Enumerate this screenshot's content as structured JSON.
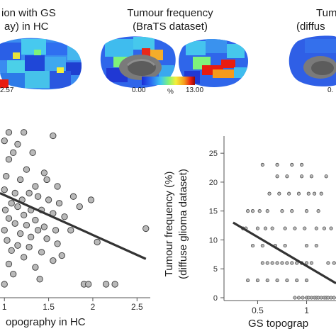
{
  "panel_left": {
    "title_line1": "ion with GS",
    "title_line2": "ay) in HC",
    "colorbar_max": "2.57",
    "xlabel": "opography in HC",
    "xticks": [
      "1",
      "1.5",
      "2",
      "2.5"
    ]
  },
  "panel_middle": {
    "title_line1": "Tumour frequency",
    "title_line2": "(BraTS dataset)",
    "colorbar_min": "0.00",
    "colorbar_unit": "%",
    "colorbar_max": "13.00"
  },
  "panel_right": {
    "title_line1": "Tum",
    "title_line2": "(diffus",
    "colorbar_min": "0."
  },
  "colors": {
    "colormap": [
      "#1a2bd6",
      "#2a6ff2",
      "#3fc7f0",
      "#7ef27a",
      "#f4ef3a",
      "#f59a1c",
      "#e81c10",
      "#8a0a08"
    ],
    "points_fill": "#b9b9b9",
    "points_stroke": "#3a3a3a",
    "fit_line": "#333333",
    "brain_blue": "#2f5fe6"
  },
  "chart_data": [
    {
      "type": "scatter",
      "title": "",
      "xlabel": "opography in HC",
      "ylabel": "",
      "xlim": [
        0.95,
        2.65
      ],
      "ylim": [
        0,
        1
      ],
      "xticks": [
        1,
        1.5,
        2,
        2.5
      ],
      "fit": {
        "x0": 0.95,
        "y0": 0.62,
        "x1": 2.6,
        "y1": 0.23
      },
      "points": [
        [
          1.05,
          0.98
        ],
        [
          1.22,
          0.98
        ],
        [
          1.55,
          0.96
        ],
        [
          1.0,
          0.93
        ],
        [
          1.1,
          0.86
        ],
        [
          1.32,
          0.86
        ],
        [
          1.05,
          0.82
        ],
        [
          1.25,
          0.76
        ],
        [
          1.45,
          0.74
        ],
        [
          1.18,
          0.7
        ],
        [
          1.02,
          0.72
        ],
        [
          1.35,
          0.66
        ],
        [
          1.38,
          0.6
        ],
        [
          1.0,
          0.64
        ],
        [
          1.12,
          0.62
        ],
        [
          1.28,
          0.62
        ],
        [
          1.2,
          0.58
        ],
        [
          1.5,
          0.58
        ],
        [
          1.08,
          0.56
        ],
        [
          1.62,
          0.56
        ],
        [
          1.98,
          0.58
        ],
        [
          1.01,
          0.52
        ],
        [
          1.15,
          0.54
        ],
        [
          1.3,
          0.52
        ],
        [
          1.42,
          0.52
        ],
        [
          1.22,
          0.49
        ],
        [
          1.55,
          0.5
        ],
        [
          1.05,
          0.47
        ],
        [
          1.35,
          0.46
        ],
        [
          1.68,
          0.48
        ],
        [
          1.12,
          0.44
        ],
        [
          1.25,
          0.43
        ],
        [
          1.45,
          0.42
        ],
        [
          1.0,
          0.4
        ],
        [
          1.38,
          0.4
        ],
        [
          1.58,
          0.4
        ],
        [
          1.18,
          0.38
        ],
        [
          1.3,
          0.36
        ],
        [
          1.03,
          0.34
        ],
        [
          1.48,
          0.35
        ],
        [
          1.15,
          0.31
        ],
        [
          1.6,
          0.32
        ],
        [
          1.08,
          0.28
        ],
        [
          1.28,
          0.3
        ],
        [
          1.42,
          0.27
        ],
        [
          1.22,
          0.24
        ],
        [
          1.55,
          0.22
        ],
        [
          1.65,
          0.25
        ],
        [
          1.05,
          0.2
        ],
        [
          1.35,
          0.18
        ],
        [
          1.75,
          0.4
        ],
        [
          2.05,
          0.33
        ],
        [
          2.6,
          0.41
        ],
        [
          1.9,
          0.08
        ],
        [
          1.95,
          0.08
        ],
        [
          2.15,
          0.08
        ],
        [
          2.25,
          0.08
        ],
        [
          1.1,
          0.14
        ],
        [
          1.4,
          0.11
        ],
        [
          1.0,
          0.08
        ],
        [
          1.6,
          0.66
        ],
        [
          1.78,
          0.6
        ],
        [
          1.85,
          0.54
        ],
        [
          1.48,
          0.7
        ],
        [
          1.15,
          0.91
        ]
      ]
    },
    {
      "type": "scatter",
      "title": "",
      "xlabel": "GS topograp",
      "ylabel": "Tumour frequency (%)\n(diffuse glioma dataset)",
      "xlim": [
        0.2,
        1.3
      ],
      "ylim": [
        0,
        26
      ],
      "xticks": [
        0.5,
        1
      ],
      "yticks": [
        0,
        5,
        10,
        15,
        20,
        25
      ],
      "fit": {
        "x0": 0.25,
        "y0": 13.0,
        "x1": 1.3,
        "y1": 2.5
      },
      "points": [
        [
          0.35,
          12
        ],
        [
          0.38,
          12
        ],
        [
          0.4,
          15
        ],
        [
          0.45,
          15
        ],
        [
          0.5,
          12
        ],
        [
          0.52,
          15
        ],
        [
          0.55,
          9
        ],
        [
          0.58,
          12
        ],
        [
          0.6,
          15
        ],
        [
          0.62,
          18
        ],
        [
          0.65,
          12
        ],
        [
          0.68,
          9
        ],
        [
          0.7,
          21
        ],
        [
          0.72,
          18
        ],
        [
          0.75,
          15
        ],
        [
          0.78,
          12
        ],
        [
          0.8,
          21
        ],
        [
          0.82,
          18
        ],
        [
          0.85,
          15
        ],
        [
          0.88,
          12
        ],
        [
          0.9,
          6
        ],
        [
          0.92,
          18
        ],
        [
          0.95,
          21
        ],
        [
          0.98,
          12
        ],
        [
          1.0,
          15
        ],
        [
          1.02,
          18
        ],
        [
          1.05,
          21
        ],
        [
          1.08,
          18
        ],
        [
          1.1,
          12
        ],
        [
          1.12,
          15
        ],
        [
          1.15,
          18
        ],
        [
          1.18,
          12
        ],
        [
          1.2,
          21
        ],
        [
          1.22,
          6
        ],
        [
          1.25,
          12
        ],
        [
          1.28,
          6
        ],
        [
          0.45,
          9
        ],
        [
          0.55,
          6
        ],
        [
          0.6,
          6
        ],
        [
          0.65,
          6
        ],
        [
          0.7,
          6
        ],
        [
          0.75,
          6
        ],
        [
          0.8,
          6
        ],
        [
          0.85,
          6
        ],
        [
          0.95,
          6
        ],
        [
          1.0,
          6
        ],
        [
          1.05,
          6
        ],
        [
          0.4,
          3
        ],
        [
          0.5,
          3
        ],
        [
          0.6,
          3
        ],
        [
          0.7,
          3
        ],
        [
          0.8,
          3
        ],
        [
          0.9,
          3
        ],
        [
          1.0,
          3
        ],
        [
          0.55,
          23
        ],
        [
          0.7,
          23
        ],
        [
          0.85,
          23
        ],
        [
          0.95,
          23
        ],
        [
          1.0,
          0
        ],
        [
          1.02,
          0
        ],
        [
          1.05,
          0
        ],
        [
          1.08,
          0
        ],
        [
          1.1,
          0
        ],
        [
          1.12,
          0
        ],
        [
          1.15,
          0
        ],
        [
          1.18,
          0
        ],
        [
          1.2,
          0
        ],
        [
          1.22,
          0
        ],
        [
          1.25,
          0
        ],
        [
          1.28,
          0
        ],
        [
          0.88,
          0
        ],
        [
          0.92,
          0
        ],
        [
          0.96,
          0
        ],
        [
          1.0,
          9
        ],
        [
          1.1,
          9
        ],
        [
          0.78,
          9
        ]
      ]
    }
  ]
}
